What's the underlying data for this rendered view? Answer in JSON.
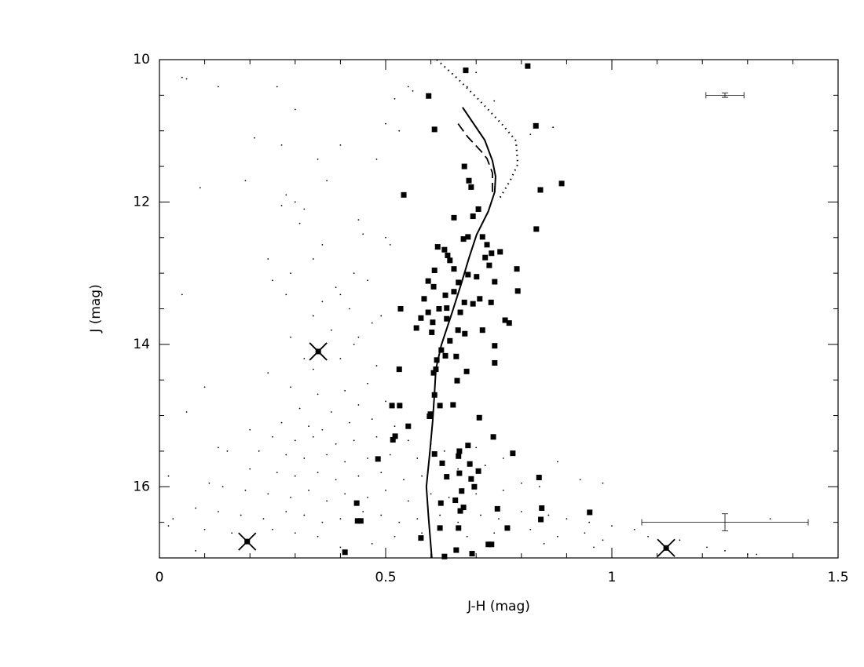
{
  "chart_data": {
    "type": "scatter",
    "xlabel": "J-H  (mag)",
    "ylabel": "J  (mag)",
    "xlim": [
      0,
      1.5
    ],
    "ylim": [
      17,
      10
    ],
    "xticks": [
      0,
      0.5,
      1,
      1.5
    ],
    "yticks": [
      10,
      12,
      14,
      16
    ],
    "xminorticks": [
      0.1,
      0.2,
      0.3,
      0.4,
      0.6,
      0.7,
      0.8,
      0.9,
      1.1,
      1.2,
      1.3,
      1.4
    ],
    "yminorticks": [
      10.5,
      11,
      11.5,
      12.5,
      13,
      13.5,
      14.5,
      15,
      15.5,
      16.5
    ],
    "color": "#000000",
    "series": [
      {
        "marker": "square",
        "x": [
          0.677,
          0.814,
          0.595,
          0.608,
          0.832,
          0.674,
          0.684,
          0.689,
          0.889,
          0.842,
          0.54,
          0.651,
          0.693,
          0.705,
          0.833,
          0.682,
          0.672,
          0.714,
          0.615,
          0.63,
          0.637,
          0.642,
          0.724,
          0.734,
          0.753,
          0.72,
          0.729,
          0.651,
          0.682,
          0.608,
          0.79,
          0.661,
          0.594,
          0.606,
          0.741,
          0.701,
          0.792,
          0.651,
          0.585,
          0.632,
          0.708,
          0.674,
          0.733,
          0.533,
          0.618,
          0.635,
          0.693,
          0.594,
          0.665,
          0.578,
          0.635,
          0.764,
          0.773,
          0.568,
          0.604,
          0.602,
          0.66,
          0.675,
          0.714,
          0.642,
          0.623,
          0.741,
          0.613,
          0.632,
          0.656,
          0.741,
          0.611,
          0.606,
          0.53,
          0.679,
          0.658,
          0.608,
          0.514,
          0.531,
          0.649,
          0.62,
          0.707,
          0.599,
          0.597,
          0.55,
          0.521,
          0.516,
          0.738,
          0.682,
          0.663,
          0.608,
          0.781,
          0.661,
          0.483,
          0.686,
          0.625,
          0.705,
          0.663,
          0.635,
          0.689,
          0.839,
          0.696,
          0.668,
          0.622,
          0.654,
          0.436,
          0.438,
          0.445,
          0.672,
          0.665,
          0.747,
          0.845,
          0.951,
          0.843,
          0.62,
          0.661,
          0.769,
          0.578,
          0.727,
          0.734,
          0.41,
          0.63,
          0.691,
          0.656
        ],
        "y": [
          10.15,
          10.09,
          10.51,
          10.98,
          10.93,
          11.5,
          11.7,
          11.79,
          11.74,
          11.83,
          11.9,
          12.22,
          12.2,
          12.1,
          12.38,
          12.49,
          12.52,
          12.49,
          12.63,
          12.67,
          12.75,
          12.82,
          12.6,
          12.72,
          12.7,
          12.78,
          12.89,
          12.94,
          13.02,
          12.96,
          12.94,
          13.13,
          13.11,
          13.19,
          13.12,
          13.05,
          13.25,
          13.26,
          13.36,
          13.31,
          13.36,
          13.41,
          13.41,
          13.5,
          13.5,
          13.49,
          13.43,
          13.55,
          13.55,
          13.63,
          13.64,
          13.66,
          13.7,
          13.77,
          13.69,
          13.83,
          13.8,
          13.85,
          13.8,
          13.95,
          14.08,
          14.02,
          14.22,
          14.16,
          14.17,
          14.26,
          14.35,
          14.4,
          14.35,
          14.38,
          14.51,
          14.71,
          14.86,
          14.86,
          14.85,
          14.86,
          15.03,
          14.98,
          15.01,
          15.15,
          15.29,
          15.34,
          15.3,
          15.42,
          15.5,
          15.54,
          15.53,
          15.57,
          15.61,
          15.68,
          15.67,
          15.78,
          15.81,
          15.86,
          15.89,
          15.87,
          16.0,
          16.06,
          16.23,
          16.19,
          16.23,
          16.48,
          16.48,
          16.29,
          16.34,
          16.31,
          16.3,
          16.36,
          16.46,
          16.58,
          16.58,
          16.58,
          16.72,
          16.81,
          16.81,
          16.92,
          16.98,
          16.94,
          16.89
        ]
      },
      {
        "marker": "dot",
        "x": [
          0.05,
          0.06,
          0.13,
          0.26,
          0.55,
          0.56,
          0.52,
          0.3,
          0.5,
          0.21,
          0.27,
          0.48,
          0.53,
          0.19,
          0.35,
          0.4,
          0.37,
          0.09,
          0.28,
          0.3,
          0.27,
          0.32,
          0.44,
          0.45,
          0.5,
          0.51,
          0.36,
          0.31,
          0.34,
          0.24,
          0.29,
          0.43,
          0.46,
          0.39,
          0.4,
          0.28,
          0.25,
          0.36,
          0.42,
          0.34,
          0.49,
          0.47,
          0.38,
          0.29,
          0.44,
          0.43,
          0.32,
          0.4,
          0.48,
          0.05,
          0.68,
          0.74,
          0.82,
          0.87,
          0.7,
          0.29,
          0.35,
          0.41,
          0.46,
          0.5,
          0.31,
          0.38,
          0.44,
          0.27,
          0.33,
          0.36,
          0.42,
          0.47,
          0.52,
          0.25,
          0.3,
          0.34,
          0.39,
          0.43,
          0.48,
          0.55,
          0.6,
          0.22,
          0.28,
          0.32,
          0.37,
          0.41,
          0.46,
          0.51,
          0.57,
          0.63,
          0.7,
          0.2,
          0.26,
          0.3,
          0.35,
          0.39,
          0.44,
          0.49,
          0.54,
          0.58,
          0.66,
          0.72,
          0.76,
          0.14,
          0.19,
          0.24,
          0.29,
          0.33,
          0.37,
          0.41,
          0.46,
          0.5,
          0.55,
          0.6,
          0.64,
          0.7,
          0.76,
          0.8,
          0.84,
          0.08,
          0.13,
          0.18,
          0.23,
          0.28,
          0.32,
          0.36,
          0.4,
          0.45,
          0.49,
          0.53,
          0.57,
          0.62,
          0.66,
          0.71,
          0.75,
          0.8,
          0.86,
          0.9,
          0.95,
          1.0,
          1.05,
          0.02,
          0.1,
          0.16,
          0.25,
          0.3,
          0.35,
          0.52,
          0.58,
          0.68,
          0.74,
          0.82,
          0.88,
          0.94,
          0.98,
          1.08,
          1.15,
          1.21,
          1.25,
          1.3,
          1.35,
          1.32,
          0.96,
          0.85,
          0.47,
          0.4,
          0.03,
          0.08,
          0.02,
          0.11,
          0.2,
          0.15,
          0.13,
          0.1,
          0.06,
          0.24,
          0.34,
          0.93,
          0.98,
          0.88
        ],
        "y": [
          10.25,
          10.27,
          10.38,
          10.38,
          10.38,
          10.44,
          10.55,
          10.7,
          10.9,
          11.1,
          11.2,
          11.4,
          11.0,
          11.7,
          11.4,
          11.2,
          11.7,
          11.8,
          11.9,
          12.0,
          12.05,
          12.1,
          12.25,
          12.45,
          12.5,
          12.6,
          12.6,
          12.3,
          12.8,
          12.8,
          13.0,
          13.0,
          13.1,
          13.2,
          13.3,
          13.3,
          13.1,
          13.4,
          13.5,
          13.6,
          13.6,
          13.7,
          13.8,
          13.9,
          13.9,
          14.0,
          14.2,
          14.2,
          14.3,
          13.3,
          10.38,
          10.58,
          11.05,
          10.95,
          10.18,
          14.6,
          14.7,
          14.65,
          14.55,
          14.8,
          14.9,
          14.95,
          14.85,
          15.1,
          15.15,
          15.2,
          15.1,
          15.05,
          15.15,
          15.3,
          15.35,
          15.3,
          15.4,
          15.35,
          15.3,
          15.35,
          15.4,
          15.5,
          15.55,
          15.6,
          15.55,
          15.65,
          15.6,
          15.55,
          15.6,
          15.5,
          15.45,
          15.75,
          15.8,
          15.85,
          15.8,
          15.9,
          15.85,
          15.8,
          15.9,
          15.85,
          15.75,
          15.7,
          15.6,
          16.0,
          16.05,
          16.1,
          16.15,
          16.05,
          16.2,
          16.1,
          16.15,
          16.05,
          16.2,
          16.1,
          16.15,
          16.1,
          16.05,
          15.95,
          16.0,
          16.3,
          16.35,
          16.4,
          16.45,
          16.35,
          16.4,
          16.5,
          16.45,
          16.35,
          16.4,
          16.5,
          16.45,
          16.4,
          16.5,
          16.4,
          16.45,
          16.35,
          16.4,
          16.45,
          16.5,
          16.55,
          16.6,
          16.55,
          16.6,
          16.65,
          16.6,
          16.65,
          16.7,
          16.7,
          16.65,
          16.7,
          16.65,
          16.6,
          16.7,
          16.65,
          16.75,
          16.7,
          16.75,
          16.85,
          16.9,
          16.95,
          16.45,
          16.95,
          16.85,
          16.8,
          16.8,
          16.85,
          16.45,
          16.9,
          15.85,
          15.95,
          15.2,
          15.5,
          15.45,
          14.6,
          14.95,
          14.4,
          14.35,
          15.9,
          15.95,
          15.65
        ]
      },
      {
        "marker": "cross",
        "x": [
          0.351,
          0.194,
          1.12
        ],
        "y": [
          14.1,
          16.77,
          16.86
        ]
      },
      {
        "marker": "solid-line",
        "x": [
          0.67,
          0.719,
          0.736,
          0.743,
          0.741,
          0.727,
          0.701,
          0.684,
          0.668,
          0.646,
          0.623,
          0.611,
          0.608,
          0.604,
          0.597,
          0.59,
          0.595,
          0.602
        ],
        "y": [
          10.67,
          11.13,
          11.42,
          11.64,
          11.86,
          12.13,
          12.46,
          12.79,
          13.13,
          13.57,
          14.01,
          14.35,
          14.68,
          15.07,
          15.56,
          16.0,
          16.45,
          17.0
        ]
      },
      {
        "marker": "dashed-line",
        "x": [
          0.66,
          0.682,
          0.71,
          0.724,
          0.736,
          0.736
        ],
        "y": [
          10.9,
          11.09,
          11.28,
          11.39,
          11.59,
          11.86
        ]
      },
      {
        "marker": "dotted-line",
        "x": [
          0.613,
          0.658,
          0.707,
          0.759,
          0.788,
          0.792,
          0.776,
          0.75
        ],
        "y": [
          10.0,
          10.26,
          10.57,
          10.92,
          11.14,
          11.47,
          11.69,
          11.97
        ]
      }
    ],
    "errorbars": [
      {
        "x": 1.25,
        "y": 10.5,
        "xerr": 0.042,
        "yerr": 0.03
      },
      {
        "x": 1.25,
        "y": 16.5,
        "xerr": 0.184,
        "yerr": 0.12
      }
    ]
  }
}
